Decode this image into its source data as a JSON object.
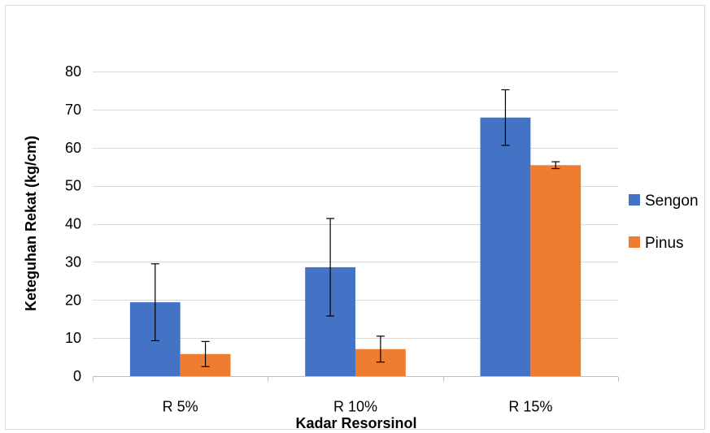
{
  "chart_data": {
    "type": "bar",
    "title": "",
    "xlabel": "Kadar Resorsinol",
    "ylabel": "Keteguhan Rekat (kg/cm)",
    "categories": [
      "R 5%",
      "R 10%",
      "R 15%"
    ],
    "series": [
      {
        "name": "Sengon",
        "color": "#4472C4",
        "values": [
          19.4,
          28.6,
          67.9
        ],
        "error": [
          10.1,
          12.8,
          7.3
        ]
      },
      {
        "name": "Pinus",
        "color": "#ED7D31",
        "values": [
          5.8,
          7.1,
          55.4
        ],
        "error": [
          3.3,
          3.4,
          0.9
        ]
      }
    ],
    "ylim": [
      0,
      80
    ],
    "yticks": [
      0,
      10,
      20,
      30,
      40,
      50,
      60,
      70,
      80
    ],
    "grid": true,
    "legend_position": "right",
    "gridline_color": "#D9D9D9",
    "axis_color": "#BFBFBF",
    "error_bar_color": "#000000"
  }
}
